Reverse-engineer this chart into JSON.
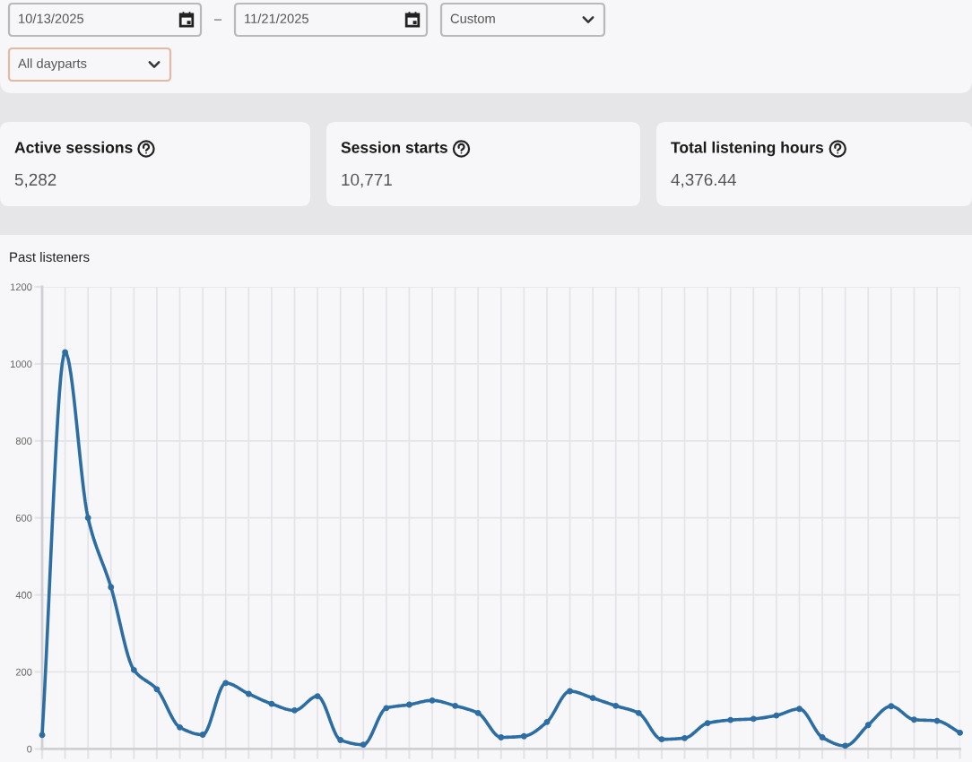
{
  "chart_data": [
    {
      "type": "other",
      "annotations": [
        "10/13/2025",
        "–",
        "11/21/2025",
        "Custom",
        "All dayparts"
      ]
    },
    {
      "type": "other",
      "title": "Active sessions",
      "annotations": [
        "5,282"
      ]
    },
    {
      "type": "other",
      "title": "Session starts",
      "annotations": [
        "10,771"
      ]
    },
    {
      "type": "other",
      "title": "Total listening hours",
      "annotations": [
        "4,376.44"
      ]
    },
    {
      "type": "line",
      "title": "Past listeners",
      "categories": [
        null,
        null,
        null,
        null,
        null,
        null,
        null,
        null,
        null,
        null,
        null,
        null,
        null,
        null,
        null,
        null,
        null,
        null,
        null,
        null,
        null,
        null,
        null,
        null,
        null,
        null,
        null,
        null,
        null,
        null,
        null,
        null,
        null,
        null,
        null,
        null,
        null,
        null,
        null,
        null,
        null
      ],
      "values": [
        36,
        1030,
        600,
        420,
        205,
        155,
        56,
        37,
        171,
        143,
        117,
        100,
        137,
        23,
        11,
        106,
        115,
        126,
        112,
        93,
        30,
        33,
        70,
        150,
        132,
        112,
        93,
        25,
        28,
        67,
        75,
        78,
        87,
        104,
        30,
        8,
        62,
        111,
        76,
        73,
        42
      ],
      "color": "#2c6da4",
      "ylim": [
        0,
        1200
      ],
      "yticks": [
        0,
        200,
        400,
        600,
        800,
        1000,
        1200
      ],
      "grid": true,
      "marker": "circle",
      "line_style": "solid"
    }
  ]
}
